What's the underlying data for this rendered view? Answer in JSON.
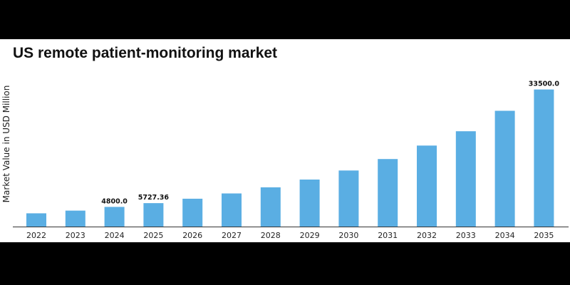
{
  "chart_data": {
    "type": "bar",
    "title": "US remote patient-monitoring market",
    "ylabel": "Market Value in USD Million",
    "xlabel": "",
    "categories": [
      "2022",
      "2023",
      "2024",
      "2025",
      "2026",
      "2027",
      "2028",
      "2029",
      "2030",
      "2031",
      "2032",
      "2033",
      "2034",
      "2035"
    ],
    "values": [
      3240,
      3900,
      4800.0,
      5727.36,
      6800,
      8100,
      9600,
      11500,
      13700,
      16500,
      19800,
      23300,
      28300,
      33500.0
    ],
    "data_labels": [
      {
        "category": "2024",
        "text": "4800.0"
      },
      {
        "category": "2025",
        "text": "5727.36"
      },
      {
        "category": "2035",
        "text": "33500.0"
      }
    ],
    "ylim": [
      0,
      35000
    ],
    "grid": false,
    "colors": {
      "bar": "#5aaee3",
      "axis": "#333333",
      "background": "#ffffff"
    }
  }
}
